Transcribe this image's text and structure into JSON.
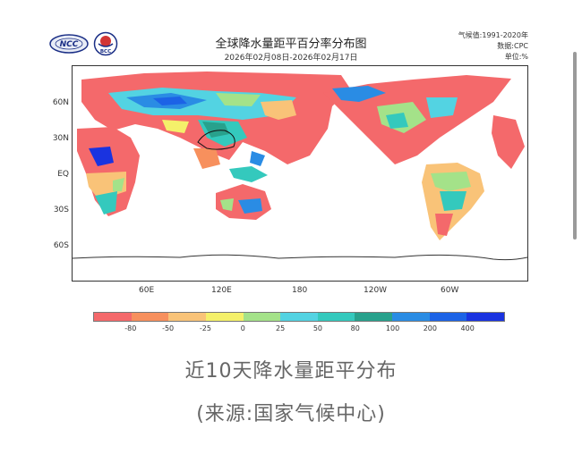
{
  "header": {
    "title": "全球降水量距平百分率分布图",
    "subtitle": "2026年02月08日-2026年02月17日",
    "climate_period": "气候值:1991-2020年",
    "data_source": "数据:CPC",
    "unit": "单位:%",
    "logo_left_text": "NCC",
    "logo_right_text": "BCC"
  },
  "map": {
    "lat_labels": [
      "60N",
      "30N",
      "EQ",
      "30S",
      "60S"
    ],
    "lon_labels": [
      "60E",
      "120E",
      "180",
      "120W",
      "60W"
    ]
  },
  "legend": {
    "colors": [
      "#f4696b",
      "#f7905d",
      "#f9c378",
      "#f4f06a",
      "#a4e289",
      "#53d3e2",
      "#34c9bd",
      "#28a18c",
      "#2a8ce4",
      "#1c63e6",
      "#1a33e0"
    ],
    "labels": [
      "-80",
      "-50",
      "-25",
      "0",
      "25",
      "50",
      "80",
      "100",
      "200",
      "400"
    ]
  },
  "caption": {
    "line1": "近10天降水量距平分布",
    "line2": "(来源:国家气候中心)"
  }
}
